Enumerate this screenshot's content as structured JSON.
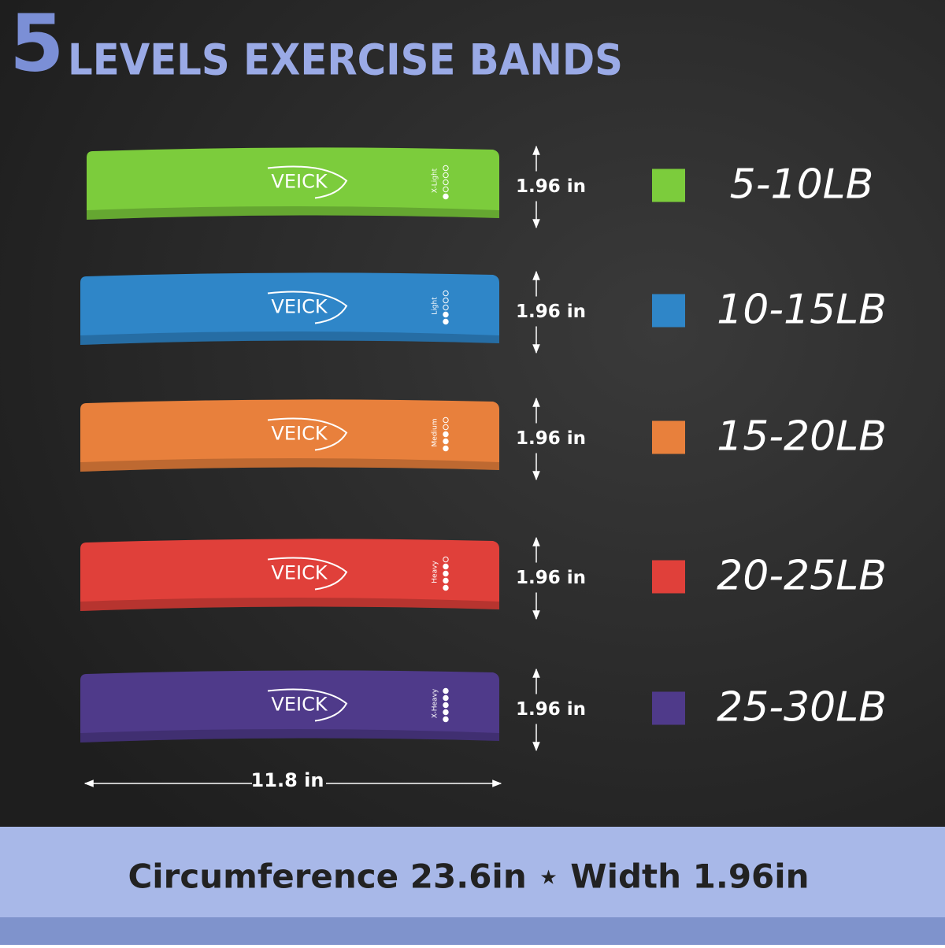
{
  "header": {
    "number": "5",
    "title": "LEVELS EXERCISE BANDS"
  },
  "bands": [
    {
      "brand": "VEICK",
      "level": "X-Light",
      "width": "1.96 in",
      "resistance": "5-10LB",
      "color": "#7ccc3c"
    },
    {
      "brand": "VEICK",
      "level": "Light",
      "width": "1.96 in",
      "resistance": "10-15LB",
      "color": "#2f86c8"
    },
    {
      "brand": "VEICK",
      "level": "Medium",
      "width": "1.96 in",
      "resistance": "15-20LB",
      "color": "#e8803c"
    },
    {
      "brand": "VEICK",
      "level": "Heavy",
      "width": "1.96 in",
      "resistance": "20-25LB",
      "color": "#e0403a"
    },
    {
      "brand": "VEICK",
      "level": "X-Heavy",
      "width": "1.96 in",
      "resistance": "25-30LB",
      "color": "#4f3a8a"
    }
  ],
  "length": "11.8 in",
  "footer": "Circumference 23.6in ⋆ Width 1.96in"
}
